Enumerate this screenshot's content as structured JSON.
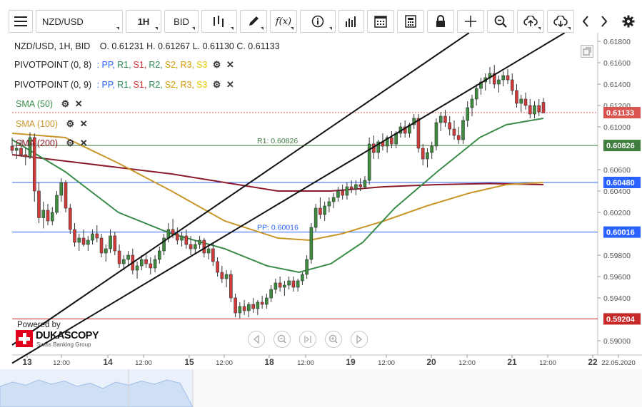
{
  "toolbar": {
    "symbol": "NZD/USD",
    "timeframe": "1H",
    "side": "BID",
    "buttons": [
      "menu-icon",
      "bar-type-icon",
      "pen-icon",
      "function-icon",
      "info-icon",
      "volume-icon",
      "calendar-icon",
      "calculator-icon",
      "lock-icon",
      "crosshair-icon",
      "zoom-icon",
      "upload-icon",
      "download-icon",
      "back-icon",
      "forward-icon",
      "gear-icon"
    ],
    "function_label": "f(x)"
  },
  "legend": {
    "header": "NZD/USD, 1H, BID",
    "ohlc": "O. 0.61231 H. 0.61267 L. 0.61130 C. 0.61133",
    "pivot1": "PIVOTPOINT (0, 8)",
    "pivot2": "PIVOTPOINT (0, 9)",
    "pivot_levels": [
      {
        "label": ": PP,",
        "color": "#2962ff"
      },
      {
        "label": "R1,",
        "color": "#2e8b57"
      },
      {
        "label": "S1,",
        "color": "#d32f2f"
      },
      {
        "label": "R2,",
        "color": "#2e8b57"
      },
      {
        "label": "S2,",
        "color": "#d69a00"
      },
      {
        "label": "R3,",
        "color": "#d69a00"
      },
      {
        "label": "S3",
        "color": "#e6c800"
      }
    ],
    "sma50": "SMA (50)",
    "sma100": "SMA (100)",
    "sma200": "SMA (200)",
    "colors": {
      "sma50": "#3b8c4a",
      "sma100": "#c9962a",
      "sma200": "#8b1a2a"
    }
  },
  "branding": {
    "powered": "Powered by",
    "name": "DUKASCOPY",
    "tagline": "Swiss Banking Group"
  },
  "chart_data": {
    "type": "candlestick",
    "symbol": "NZD/USD",
    "ylim": [
      0.5888,
      0.6188
    ],
    "y_ticks": [
      0.618,
      0.616,
      0.614,
      0.612,
      0.61,
      0.606,
      0.604,
      0.602,
      0.598,
      0.596,
      0.594,
      0.59
    ],
    "y_tick_labels": [
      "0.61800",
      "0.61600",
      "0.61400",
      "0.61200",
      "0.61000",
      "0.60600",
      "0.60400",
      "0.60200",
      "0.59800",
      "0.59600",
      "0.59400",
      "0.59000"
    ],
    "x_labels": [
      "13",
      "12:00",
      "14",
      "12:00",
      "15",
      "12:00",
      "18",
      "12:00",
      "19",
      "12:00",
      "20",
      "12:00",
      "21",
      "12:00",
      "22",
      "22.05.2020"
    ],
    "x_label_bold": [
      true,
      false,
      true,
      false,
      true,
      false,
      true,
      false,
      true,
      false,
      true,
      false,
      true,
      false,
      true,
      false
    ],
    "last_price": {
      "value": 0.61133,
      "label": "0.61133",
      "color": "#d9534f"
    },
    "horizontal_levels": [
      {
        "name": "R1",
        "value": 0.60826,
        "label": "R1: 0.60826",
        "tag": "0.60826",
        "color": "#3e7d3e"
      },
      {
        "name": "PP",
        "value": 0.6048,
        "label": "",
        "tag": "0.60480",
        "color": "#2962ff"
      },
      {
        "name": "PP",
        "value": 0.60016,
        "label": "PP: 0.60016",
        "tag": "0.60016",
        "color": "#2962ff"
      },
      {
        "name": "S1",
        "value": 0.59204,
        "label": "",
        "tag": "0.59204",
        "color": "#c62828"
      }
    ],
    "trend_channel": [
      {
        "p1": [
          0.0,
          0.5896
        ],
        "p2": [
          0.86,
          0.6188
        ]
      },
      {
        "p1": [
          0.0,
          0.5879
        ],
        "p2": [
          1.04,
          0.6188
        ]
      }
    ],
    "candles": [
      [
        0.6082,
        0.609,
        0.6075,
        0.6078
      ],
      [
        0.6078,
        0.6085,
        0.607,
        0.608
      ],
      [
        0.608,
        0.6088,
        0.6072,
        0.6074
      ],
      [
        0.6074,
        0.608,
        0.6064,
        0.6072
      ],
      [
        0.6072,
        0.6095,
        0.607,
        0.609
      ],
      [
        0.609,
        0.6094,
        0.603,
        0.604
      ],
      [
        0.604,
        0.6048,
        0.601,
        0.6015
      ],
      [
        0.6015,
        0.603,
        0.6005,
        0.6022
      ],
      [
        0.6022,
        0.6028,
        0.6008,
        0.6012
      ],
      [
        0.6012,
        0.6025,
        0.6008,
        0.602
      ],
      [
        0.602,
        0.604,
        0.6018,
        0.6036
      ],
      [
        0.6036,
        0.6052,
        0.603,
        0.6048
      ],
      [
        0.6048,
        0.605,
        0.602,
        0.6024
      ],
      [
        0.6024,
        0.6028,
        0.6,
        0.6004
      ],
      [
        0.6004,
        0.601,
        0.5988,
        0.5992
      ],
      [
        0.5992,
        0.6,
        0.5984,
        0.5996
      ],
      [
        0.5996,
        0.6004,
        0.5988,
        0.599
      ],
      [
        0.599,
        0.5998,
        0.5984,
        0.5994
      ],
      [
        0.5994,
        0.6004,
        0.599,
        0.6
      ],
      [
        0.6,
        0.6008,
        0.5992,
        0.5996
      ],
      [
        0.5996,
        0.6,
        0.5978,
        0.5982
      ],
      [
        0.5982,
        0.599,
        0.5974,
        0.5986
      ],
      [
        0.5986,
        0.6004,
        0.5982,
        0.5998
      ],
      [
        0.5998,
        0.6002,
        0.598,
        0.5984
      ],
      [
        0.5984,
        0.599,
        0.5968,
        0.5972
      ],
      [
        0.5972,
        0.598,
        0.5966,
        0.5976
      ],
      [
        0.5976,
        0.5984,
        0.597,
        0.598
      ],
      [
        0.598,
        0.5986,
        0.5962,
        0.5966
      ],
      [
        0.5966,
        0.5974,
        0.5958,
        0.597
      ],
      [
        0.597,
        0.598,
        0.5966,
        0.5976
      ],
      [
        0.5976,
        0.5982,
        0.5968,
        0.5972
      ],
      [
        0.5972,
        0.5978,
        0.5962,
        0.5968
      ],
      [
        0.5968,
        0.598,
        0.5964,
        0.5976
      ],
      [
        0.5976,
        0.5988,
        0.5972,
        0.5984
      ],
      [
        0.5984,
        0.6,
        0.598,
        0.5996
      ],
      [
        0.5996,
        0.601,
        0.5992,
        0.6004
      ],
      [
        0.6004,
        0.6014,
        0.5996,
        0.6
      ],
      [
        0.6,
        0.6006,
        0.599,
        0.5994
      ],
      [
        0.5994,
        0.6002,
        0.5988,
        0.5998
      ],
      [
        0.5998,
        0.6004,
        0.5986,
        0.599
      ],
      [
        0.599,
        0.5998,
        0.598,
        0.5986
      ],
      [
        0.5986,
        0.5994,
        0.5982,
        0.599
      ],
      [
        0.599,
        0.5998,
        0.5986,
        0.5994
      ],
      [
        0.5994,
        0.5996,
        0.5978,
        0.5982
      ],
      [
        0.5982,
        0.599,
        0.5976,
        0.5986
      ],
      [
        0.5986,
        0.5992,
        0.597,
        0.5974
      ],
      [
        0.5974,
        0.5978,
        0.596,
        0.5964
      ],
      [
        0.5964,
        0.597,
        0.5954,
        0.5958
      ],
      [
        0.5958,
        0.5966,
        0.595,
        0.5962
      ],
      [
        0.5962,
        0.5966,
        0.5936,
        0.594
      ],
      [
        0.594,
        0.5944,
        0.5922,
        0.5926
      ],
      [
        0.5926,
        0.5936,
        0.5921,
        0.5932
      ],
      [
        0.5932,
        0.5938,
        0.5924,
        0.5928
      ],
      [
        0.5928,
        0.5936,
        0.5922,
        0.5934
      ],
      [
        0.5934,
        0.594,
        0.5926,
        0.593
      ],
      [
        0.593,
        0.5938,
        0.5924,
        0.5936
      ],
      [
        0.5936,
        0.5942,
        0.593,
        0.5934
      ],
      [
        0.5934,
        0.5944,
        0.593,
        0.594
      ],
      [
        0.594,
        0.5952,
        0.5936,
        0.5948
      ],
      [
        0.5948,
        0.5958,
        0.5944,
        0.5954
      ],
      [
        0.5954,
        0.596,
        0.5946,
        0.595
      ],
      [
        0.595,
        0.5956,
        0.5942,
        0.5952
      ],
      [
        0.5952,
        0.596,
        0.5948,
        0.5956
      ],
      [
        0.5956,
        0.596,
        0.5946,
        0.595
      ],
      [
        0.595,
        0.5958,
        0.5946,
        0.5956
      ],
      [
        0.5956,
        0.5964,
        0.5952,
        0.5962
      ],
      [
        0.5962,
        0.598,
        0.5958,
        0.5976
      ],
      [
        0.5976,
        0.601,
        0.5972,
        0.6006
      ],
      [
        0.6006,
        0.6028,
        0.6002,
        0.6024
      ],
      [
        0.6024,
        0.6034,
        0.6014,
        0.6018
      ],
      [
        0.6018,
        0.603,
        0.6012,
        0.6026
      ],
      [
        0.6026,
        0.6034,
        0.602,
        0.603
      ],
      [
        0.603,
        0.6038,
        0.6024,
        0.6034
      ],
      [
        0.6034,
        0.6044,
        0.603,
        0.604
      ],
      [
        0.604,
        0.6046,
        0.6032,
        0.6036
      ],
      [
        0.6036,
        0.6048,
        0.6032,
        0.6044
      ],
      [
        0.6044,
        0.605,
        0.6038,
        0.6042
      ],
      [
        0.6042,
        0.605,
        0.6036,
        0.6046
      ],
      [
        0.6046,
        0.6052,
        0.604,
        0.6044
      ],
      [
        0.6044,
        0.6054,
        0.6042,
        0.605
      ],
      [
        0.605,
        0.609,
        0.6046,
        0.6084
      ],
      [
        0.6084,
        0.6092,
        0.607,
        0.6076
      ],
      [
        0.6076,
        0.6088,
        0.607,
        0.6086
      ],
      [
        0.6086,
        0.6094,
        0.6078,
        0.6082
      ],
      [
        0.6082,
        0.6092,
        0.6076,
        0.609
      ],
      [
        0.609,
        0.6096,
        0.608,
        0.6084
      ],
      [
        0.6084,
        0.6096,
        0.608,
        0.6094
      ],
      [
        0.6094,
        0.6104,
        0.609,
        0.61
      ],
      [
        0.61,
        0.6106,
        0.609,
        0.6094
      ],
      [
        0.6094,
        0.6104,
        0.609,
        0.6102
      ],
      [
        0.6102,
        0.6112,
        0.6098,
        0.6108
      ],
      [
        0.6108,
        0.6112,
        0.6076,
        0.608
      ],
      [
        0.608,
        0.6084,
        0.6064,
        0.607
      ],
      [
        0.607,
        0.608,
        0.6062,
        0.6076
      ],
      [
        0.6076,
        0.6086,
        0.607,
        0.6082
      ],
      [
        0.6082,
        0.6108,
        0.6078,
        0.6104
      ],
      [
        0.6104,
        0.6114,
        0.6096,
        0.611
      ],
      [
        0.611,
        0.6116,
        0.61,
        0.6104
      ],
      [
        0.6104,
        0.611,
        0.6092,
        0.6098
      ],
      [
        0.6098,
        0.6106,
        0.6088,
        0.6092
      ],
      [
        0.6092,
        0.61,
        0.6084,
        0.6088
      ],
      [
        0.6088,
        0.611,
        0.6084,
        0.6106
      ],
      [
        0.6106,
        0.6124,
        0.61,
        0.6118
      ],
      [
        0.6118,
        0.613,
        0.611,
        0.6126
      ],
      [
        0.6126,
        0.614,
        0.612,
        0.6136
      ],
      [
        0.6136,
        0.6146,
        0.613,
        0.6142
      ],
      [
        0.6142,
        0.615,
        0.6134,
        0.6146
      ],
      [
        0.6146,
        0.6156,
        0.614,
        0.615
      ],
      [
        0.615,
        0.6158,
        0.6136,
        0.614
      ],
      [
        0.614,
        0.6148,
        0.6132,
        0.6144
      ],
      [
        0.6144,
        0.6152,
        0.6138,
        0.6148
      ],
      [
        0.6148,
        0.6154,
        0.614,
        0.6144
      ],
      [
        0.6144,
        0.615,
        0.613,
        0.6134
      ],
      [
        0.6134,
        0.614,
        0.6118,
        0.6122
      ],
      [
        0.6122,
        0.613,
        0.6114,
        0.6126
      ],
      [
        0.6126,
        0.6132,
        0.6116,
        0.612
      ],
      [
        0.612,
        0.6126,
        0.6108,
        0.6112
      ],
      [
        0.6112,
        0.6124,
        0.6108,
        0.612
      ],
      [
        0.612,
        0.6126,
        0.611,
        0.6114
      ],
      [
        0.6123,
        0.6127,
        0.6113,
        0.6113
      ]
    ],
    "sma50": [
      [
        0,
        0.6088
      ],
      [
        0.1,
        0.6058
      ],
      [
        0.2,
        0.602
      ],
      [
        0.3,
        0.6
      ],
      [
        0.4,
        0.5986
      ],
      [
        0.48,
        0.597
      ],
      [
        0.54,
        0.5964
      ],
      [
        0.6,
        0.5972
      ],
      [
        0.66,
        0.5992
      ],
      [
        0.72,
        0.6024
      ],
      [
        0.8,
        0.6058
      ],
      [
        0.88,
        0.609
      ],
      [
        0.93,
        0.6102
      ],
      [
        1.0,
        0.6108
      ]
    ],
    "sma100": [
      [
        0,
        0.6094
      ],
      [
        0.1,
        0.609
      ],
      [
        0.2,
        0.6066
      ],
      [
        0.3,
        0.604
      ],
      [
        0.4,
        0.6012
      ],
      [
        0.5,
        0.5996
      ],
      [
        0.56,
        0.5994
      ],
      [
        0.62,
        0.6
      ],
      [
        0.7,
        0.6012
      ],
      [
        0.78,
        0.6026
      ],
      [
        0.86,
        0.6038
      ],
      [
        0.93,
        0.6046
      ],
      [
        1.0,
        0.6048
      ]
    ],
    "sma200": [
      [
        0,
        0.6074
      ],
      [
        0.1,
        0.6068
      ],
      [
        0.2,
        0.6062
      ],
      [
        0.3,
        0.6056
      ],
      [
        0.4,
        0.6048
      ],
      [
        0.5,
        0.604
      ],
      [
        0.6,
        0.604
      ],
      [
        0.7,
        0.6044
      ],
      [
        0.8,
        0.6046
      ],
      [
        0.9,
        0.6047
      ],
      [
        1.0,
        0.6046
      ]
    ]
  }
}
